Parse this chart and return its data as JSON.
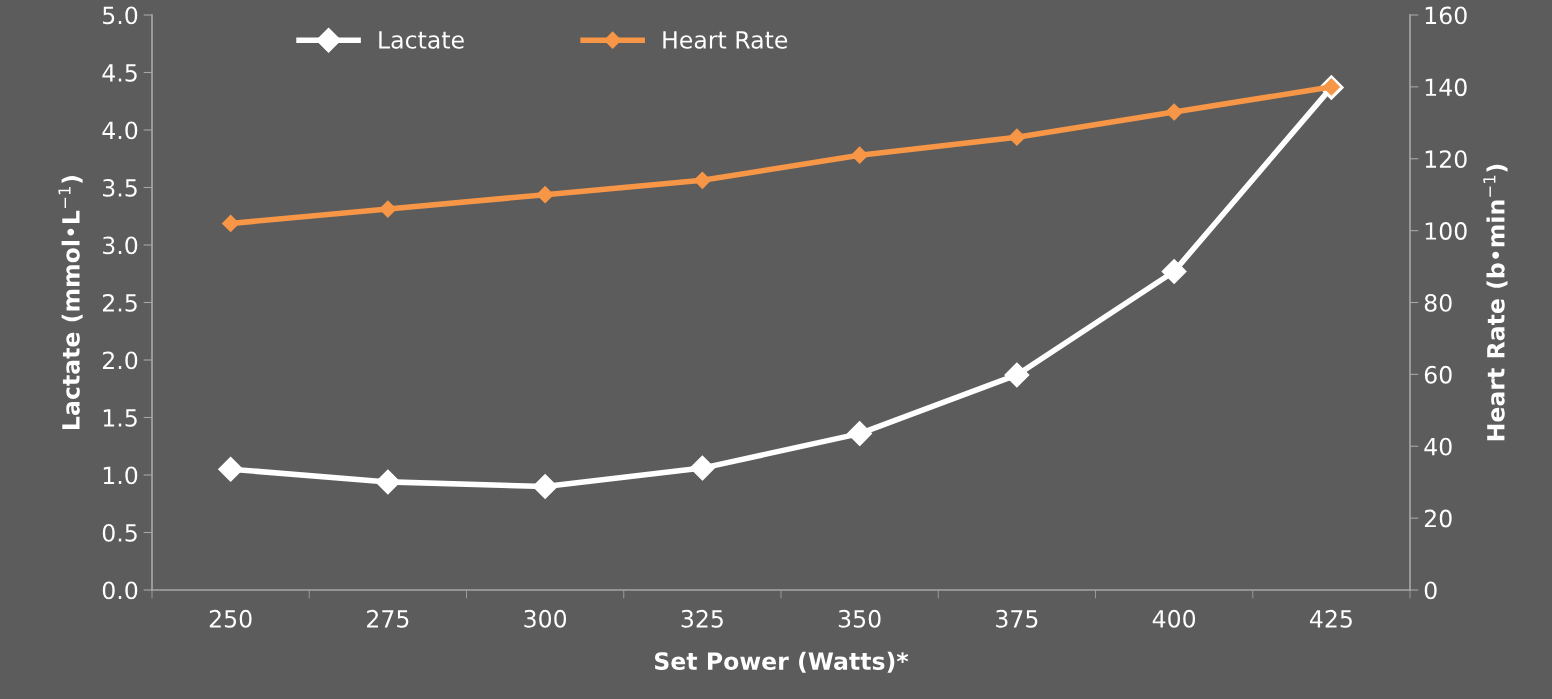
{
  "chart_data": {
    "type": "line",
    "xlabel": "Set Power (Watts)*",
    "ylabel": "Lactate (mmol•L$^{−1}$)",
    "y2label": "Heart Rate (b•min$^{−1}$)",
    "categories": [
      "250",
      "275",
      "300",
      "325",
      "350",
      "375",
      "400",
      "425"
    ],
    "series": [
      {
        "name": "Lactate",
        "color": "#ffffff",
        "values": [
          1.05,
          0.94,
          0.9,
          1.06,
          1.36,
          1.87,
          2.77,
          4.37
        ]
      },
      {
        "name": "Heart Rate",
        "color": "#f79646",
        "axis": "y2",
        "values": [
          102,
          106,
          110,
          114,
          121,
          126,
          133,
          140
        ]
      }
    ],
    "ylim": [
      0,
      5
    ],
    "yticks": [
      {
        "value": 0,
        "label": "0.0"
      },
      {
        "value": 0.5,
        "label": "0.5"
      },
      {
        "value": 1,
        "label": "1.0"
      },
      {
        "value": 1.5,
        "label": "1.5"
      },
      {
        "value": 2,
        "label": "2.0"
      },
      {
        "value": 2.5,
        "label": "2.5"
      },
      {
        "value": 3,
        "label": "3.0"
      },
      {
        "value": 3.5,
        "label": "3.5"
      },
      {
        "value": 4,
        "label": "4.0"
      },
      {
        "value": 4.5,
        "label": "4.5"
      },
      {
        "value": 5,
        "label": "5.0"
      }
    ],
    "y2lim": [
      0,
      160
    ],
    "y2ticks": [
      0,
      20,
      40,
      60,
      80,
      100,
      120,
      140,
      160
    ],
    "marker": "diamond",
    "line_style": "solid",
    "grid": false,
    "legend": "top left"
  }
}
